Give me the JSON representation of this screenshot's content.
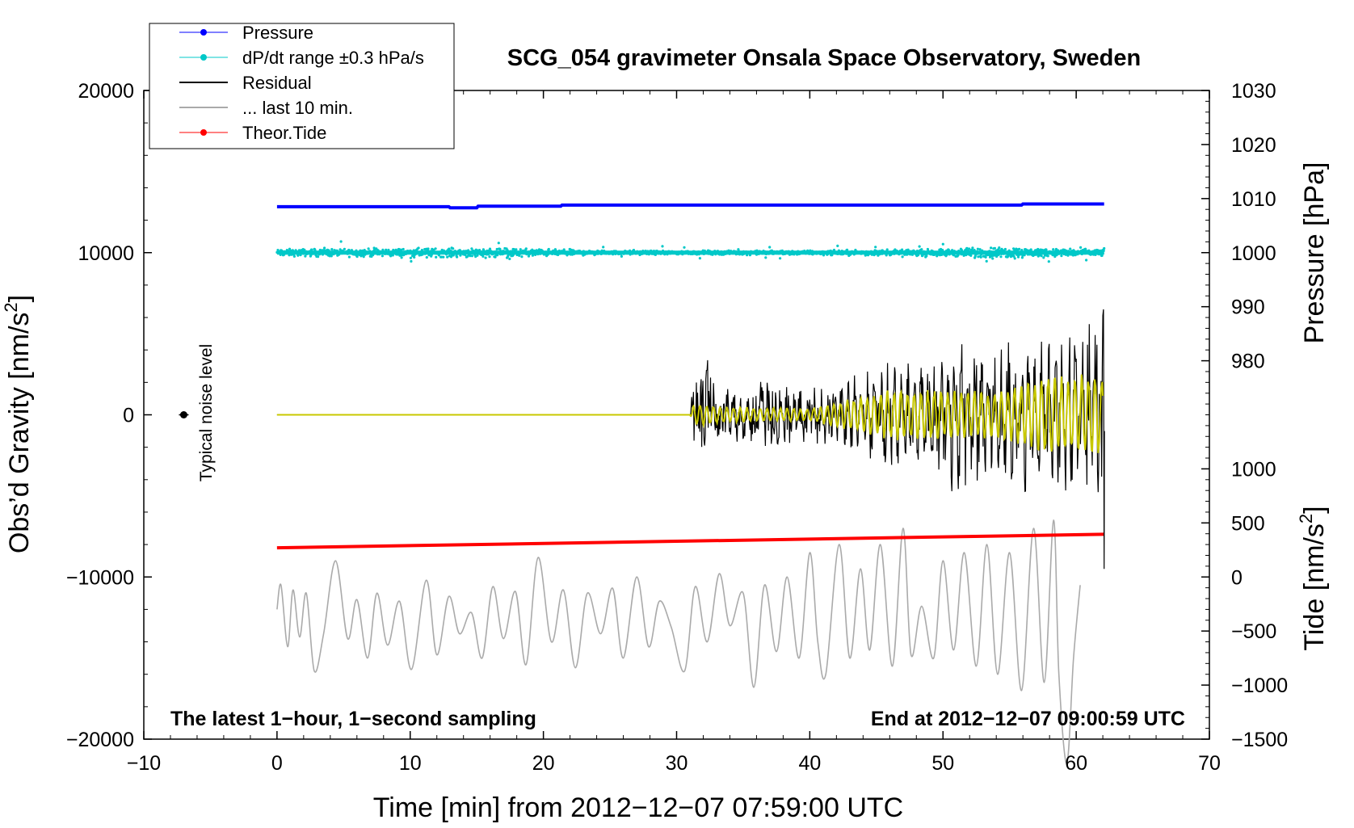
{
  "chart_data": {
    "type": "line",
    "title": "SCG_054 gravimeter Onsala Space Observatory, Sweden",
    "subtitle_left": "The latest 1−hour, 1−second sampling",
    "subtitle_right": "End at 2012−12−07 09:00:59 UTC",
    "xlabel": "Time [min] from 2012−12−07 07:59:00 UTC",
    "ylabel_left_main": "Obs’d Gravity [nm/s",
    "ylabel_left_sup": "2",
    "ylabel_left_end": "]",
    "ylabel_right_top": "Pressure [hPa]",
    "ylabel_right_bottom_main": "Tide [nm/s",
    "ylabel_right_bottom_sup": "2",
    "ylabel_right_bottom_end": "]",
    "noise_label": "Typical noise level",
    "xlim": [
      -10,
      70
    ],
    "ylim_left": [
      -20000,
      20000
    ],
    "ylim_right_pressure": [
      970,
      1030
    ],
    "ylim_right_tide": [
      -1500,
      1500
    ],
    "x_ticks": [
      "−10",
      "0",
      "10",
      "20",
      "30",
      "40",
      "50",
      "60",
      "70"
    ],
    "y_ticks_left": [
      "−20000",
      "−10000",
      "0",
      "10000",
      "20000"
    ],
    "y_ticks_right_pressure": [
      "980",
      "990",
      "1000",
      "1010",
      "1020",
      "1030"
    ],
    "y_ticks_right_tide": [
      "−1500",
      "−1000",
      "−500",
      "0",
      "500",
      "1000"
    ],
    "grid": false,
    "legend_position": "top-left",
    "legend": [
      {
        "label": "Pressure",
        "color": "#0000ff",
        "style": "line-dot"
      },
      {
        "label": "dP/dt range ±0.3 hPa/s",
        "color": "#00c8c8",
        "style": "line-dot"
      },
      {
        "label": "Residual",
        "color": "#000000",
        "style": "line"
      },
      {
        "label": "... last 10 min.",
        "color": "#aaaaaa",
        "style": "line"
      },
      {
        "label": "Theor.Tide",
        "color": "#ff0000",
        "style": "line-dot"
      }
    ],
    "series": [
      {
        "name": "Pressure",
        "axis": "pressure",
        "color": "#0000ff",
        "x": [
          0,
          12.9,
          13.0,
          15.0,
          15.1,
          21.3,
          21.4,
          55.9,
          56.0,
          62.1
        ],
        "y": [
          1008.5,
          1008.5,
          1008.3,
          1008.3,
          1008.6,
          1008.6,
          1008.8,
          1008.8,
          1009.0,
          1009.0
        ]
      },
      {
        "name": "dP/dt range ±0.3 hPa/s",
        "axis": "pressure",
        "color": "#00c8c8",
        "x_range": [
          0,
          62.1
        ],
        "level": 1000,
        "spread_samples": [
          {
            "x": 0,
            "amp": 1.5
          },
          {
            "x": 10,
            "amp": 1.8
          },
          {
            "x": 17,
            "amp": 2.0
          },
          {
            "x": 25,
            "amp": 0.8
          },
          {
            "x": 38,
            "amp": 0.9
          },
          {
            "x": 48,
            "amp": 1.2
          },
          {
            "x": 54,
            "amp": 2.4
          },
          {
            "x": 62,
            "amp": 1.5
          }
        ]
      },
      {
        "name": "Theor.Tide",
        "axis": "tide",
        "color": "#ff0000",
        "x": [
          0,
          62.1
        ],
        "y": [
          270,
          395
        ]
      },
      {
        "name": "Residual",
        "axis": "gravity",
        "color": "#000000",
        "envelope": [
          {
            "x": 0,
            "amp": 0
          },
          {
            "x": 31.0,
            "amp": 0
          },
          {
            "x": 31.3,
            "amp": 3000
          },
          {
            "x": 32.5,
            "amp": 3500
          },
          {
            "x": 34,
            "amp": 1400
          },
          {
            "x": 37,
            "amp": 2200
          },
          {
            "x": 40,
            "amp": 1300
          },
          {
            "x": 43,
            "amp": 1800
          },
          {
            "x": 46,
            "amp": 2400
          },
          {
            "x": 48,
            "amp": 2200
          },
          {
            "x": 51,
            "amp": 4300
          },
          {
            "x": 54,
            "amp": 3400
          },
          {
            "x": 57,
            "amp": 3600
          },
          {
            "x": 60,
            "amp": 4200
          },
          {
            "x": 61.8,
            "amp": 5500
          },
          {
            "x": 62.0,
            "amp": 8000
          }
        ],
        "end_spike": {
          "x": 62.1,
          "max": 6500,
          "min": -9500
        }
      },
      {
        "name": "Residual (yellow)",
        "axis": "gravity",
        "color": "#c8c800",
        "envelope": [
          {
            "x": 0,
            "amp": 0
          },
          {
            "x": 31.0,
            "amp": 0
          },
          {
            "x": 31.3,
            "amp": 700
          },
          {
            "x": 34,
            "amp": 500
          },
          {
            "x": 40,
            "amp": 400
          },
          {
            "x": 46,
            "amp": 1600
          },
          {
            "x": 50,
            "amp": 1600
          },
          {
            "x": 54,
            "amp": 1500
          },
          {
            "x": 58,
            "amp": 2500
          },
          {
            "x": 61.8,
            "amp": 2500
          }
        ]
      },
      {
        "name": "... last 10 min.",
        "axis": "gravity",
        "color": "#aaaaaa",
        "x": [
          0,
          0.3,
          0.8,
          1.2,
          1.7,
          2.2,
          2.8,
          3.5,
          4.4,
          5.3,
          6.0,
          6.8,
          7.5,
          8.3,
          9.2,
          10.1,
          11.2,
          12.0,
          12.9,
          13.7,
          14.6,
          15.4,
          16.2,
          17.0,
          17.9,
          18.7,
          19.6,
          20.6,
          21.5,
          22.4,
          23.3,
          24.3,
          25.2,
          26.0,
          27.0,
          27.9,
          28.7,
          29.6,
          30.6,
          31.4,
          32.3,
          33.2,
          34.0,
          35.0,
          35.8,
          36.6,
          37.5,
          38.3,
          39.2,
          40.0,
          40.6,
          41.2,
          42.2,
          43.0,
          43.8,
          44.5,
          45.3,
          46.2,
          47.0,
          47.6,
          48.4,
          49.3,
          50.0,
          50.8,
          51.6,
          52.5,
          53.3,
          54.1,
          55.0,
          55.9,
          56.8,
          57.6,
          58.3,
          58.7,
          59.3,
          59.8,
          60.3
        ],
        "y": [
          -12000,
          -10500,
          -14300,
          -10800,
          -13700,
          -11000,
          -15800,
          -13500,
          -9000,
          -13800,
          -11400,
          -15000,
          -11000,
          -14200,
          -11500,
          -15700,
          -10200,
          -14800,
          -11200,
          -13500,
          -12200,
          -15000,
          -10600,
          -13800,
          -10900,
          -15400,
          -8800,
          -14000,
          -10800,
          -15600,
          -11000,
          -13500,
          -10700,
          -15000,
          -10000,
          -14300,
          -11500,
          -13100,
          -15800,
          -10600,
          -14000,
          -9800,
          -13000,
          -11000,
          -16800,
          -10500,
          -14600,
          -10000,
          -15000,
          -8500,
          -14000,
          -16000,
          -8000,
          -15000,
          -9500,
          -14500,
          -8000,
          -15500,
          -7000,
          -14800,
          -11800,
          -15000,
          -9000,
          -14500,
          -8500,
          -15500,
          -8000,
          -16000,
          -8500,
          -17000,
          -7000,
          -16500,
          -6500,
          -16000,
          -21500,
          -15000,
          -10500
        ]
      }
    ],
    "noise_marker": {
      "x": -7,
      "y": 0
    }
  }
}
